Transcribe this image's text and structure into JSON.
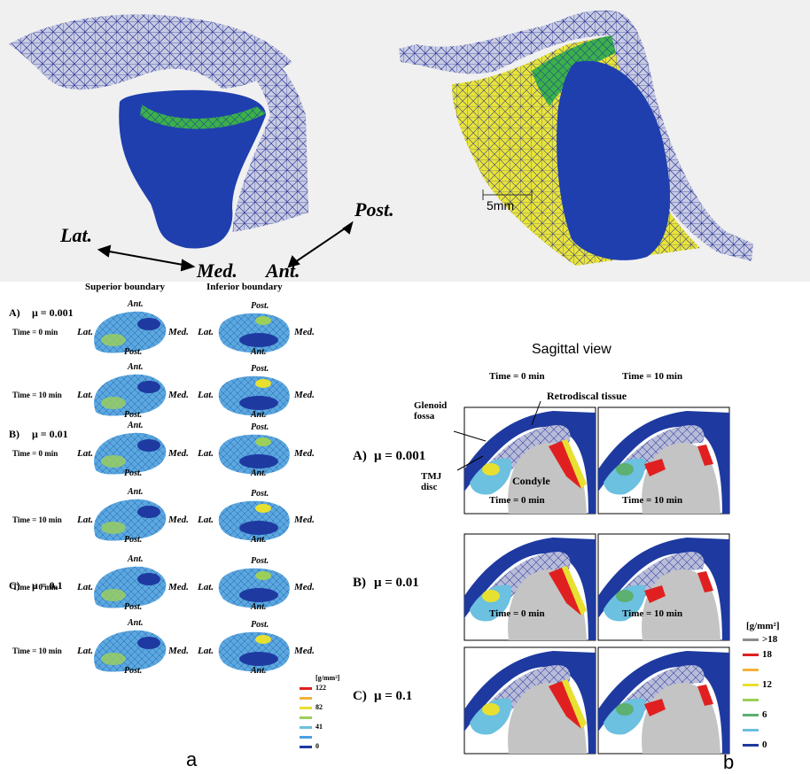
{
  "top": {
    "directions": {
      "lat": "Lat.",
      "med": "Med.",
      "ant": "Ant.",
      "post": "Post."
    },
    "scale_label": "5mm"
  },
  "panel_a": {
    "col_superior": "Superior boundary",
    "col_inferior": "Inferior boundary",
    "rows": [
      {
        "group": "A)",
        "mu": "μ = 0.001",
        "time": "Time = 0 min",
        "inf_top": "Post.",
        "inf_bottom": "Ant."
      },
      {
        "group": "",
        "mu": "",
        "time": "Time = 10 min",
        "inf_top": "Post.",
        "inf_bottom": "Ant."
      },
      {
        "group": "B)",
        "mu": "μ = 0.01",
        "time": "Time = 0 min",
        "inf_top": "Post.",
        "inf_bottom": "Ant."
      },
      {
        "group": "",
        "mu": "",
        "time": "Time = 10 min",
        "inf_top": "Post.",
        "inf_bottom": "Ant."
      },
      {
        "group": "C)",
        "mu": "μ = 0.1",
        "time": "Time = 0 min",
        "inf_top": "Post.",
        "inf_bottom": "Ant."
      },
      {
        "group": "",
        "mu": "",
        "time": "Time = 10 min",
        "inf_top": "Post.",
        "inf_bottom": "Ant."
      }
    ],
    "labels": {
      "ant": "Ant.",
      "post": "Post.",
      "lat": "Lat.",
      "med": "Med."
    },
    "legend": {
      "unit": "[g/mm²]",
      "items": [
        {
          "label": "122",
          "color": "#e02020"
        },
        {
          "label": "",
          "color": "#f2b23a"
        },
        {
          "label": "82",
          "color": "#e8e030"
        },
        {
          "label": "",
          "color": "#9ccf5a"
        },
        {
          "label": "41",
          "color": "#6cc0e0"
        },
        {
          "label": "",
          "color": "#4aa0e0"
        },
        {
          "label": "0",
          "color": "#1e3aa0"
        }
      ]
    },
    "caption": "a"
  },
  "panel_b": {
    "title": "Sagittal view",
    "time0": "Time = 0 min",
    "time10": "Time = 10 min",
    "rows": [
      {
        "group": "A)",
        "mu": "μ = 0.001"
      },
      {
        "group": "B)",
        "mu": "μ = 0.01"
      },
      {
        "group": "C)",
        "mu": "μ = 0.1"
      }
    ],
    "annotations": {
      "glenoid": "Glenoid",
      "fossa": "fossa",
      "retro": "Retrodiscal tissue",
      "tmj": "TMJ",
      "disc": "disc",
      "condyle": "Condyle"
    },
    "legend": {
      "unit": "[g/mm²]",
      "items": [
        {
          "label": ">18",
          "color": "#8c8c8c"
        },
        {
          "label": "18",
          "color": "#e02020"
        },
        {
          "label": "",
          "color": "#f2b23a"
        },
        {
          "label": "12",
          "color": "#e8e030"
        },
        {
          "label": "",
          "color": "#9ccf5a"
        },
        {
          "label": "6",
          "color": "#5cb070"
        },
        {
          "label": "",
          "color": "#6cc0e0"
        },
        {
          "label": "0",
          "color": "#1e3aa0"
        }
      ]
    },
    "caption": "b"
  }
}
